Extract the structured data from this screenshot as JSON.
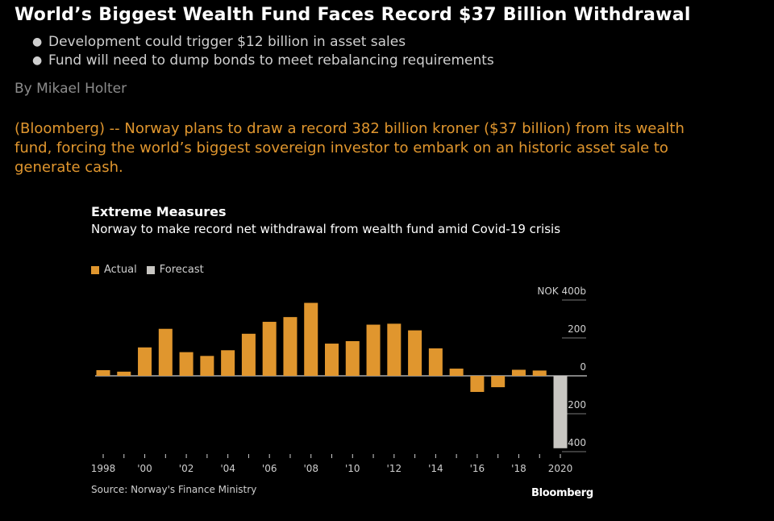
{
  "article": {
    "headline": "World’s Biggest Wealth Fund Faces Record $37 Billion Withdrawal",
    "bullets": [
      "Development could trigger $12 billion in asset sales",
      "Fund will need to dump bonds to meet rebalancing requirements"
    ],
    "byline": "By Mikael Holter",
    "body": "(Bloomberg) -- Norway plans to draw a record 382 billion kroner ($37 billion) from its wealth fund, forcing the world’s biggest sovereign investor to embark on an historic asset sale to generate cash."
  },
  "chart_data": {
    "type": "bar",
    "title": "Extreme Measures",
    "subtitle": "Norway to make record net withdrawal from wealth fund amid Covid-19 crisis",
    "legend": [
      {
        "name": "Actual",
        "color": "#e0962e"
      },
      {
        "name": "Forecast",
        "color": "#c8c6c2"
      }
    ],
    "unit_label": "NOK 400b",
    "y_ticks": [
      "NOK 400b",
      "200",
      "0",
      "-200",
      "-400"
    ],
    "y_tick_values": [
      400,
      200,
      0,
      -200,
      -400
    ],
    "ylim": [
      -400,
      400
    ],
    "x_tick_labels": [
      "1998",
      "'00",
      "'02",
      "'04",
      "'06",
      "'08",
      "'10",
      "'12",
      "'14",
      "'16",
      "'18",
      "2020"
    ],
    "years": [
      1998,
      1999,
      2000,
      2001,
      2002,
      2003,
      2004,
      2005,
      2006,
      2007,
      2008,
      2009,
      2010,
      2011,
      2012,
      2013,
      2014,
      2015,
      2016,
      2017,
      2018,
      2019,
      2020
    ],
    "values": [
      30,
      22,
      150,
      248,
      125,
      105,
      135,
      222,
      285,
      310,
      385,
      170,
      183,
      270,
      275,
      240,
      145,
      38,
      -85,
      -60,
      32,
      28,
      -382
    ],
    "series_type": [
      "Actual",
      "Actual",
      "Actual",
      "Actual",
      "Actual",
      "Actual",
      "Actual",
      "Actual",
      "Actual",
      "Actual",
      "Actual",
      "Actual",
      "Actual",
      "Actual",
      "Actual",
      "Actual",
      "Actual",
      "Actual",
      "Actual",
      "Actual",
      "Actual",
      "Actual",
      "Forecast"
    ],
    "source": "Source: Norway's Finance Ministry",
    "brand": "Bloomberg"
  }
}
